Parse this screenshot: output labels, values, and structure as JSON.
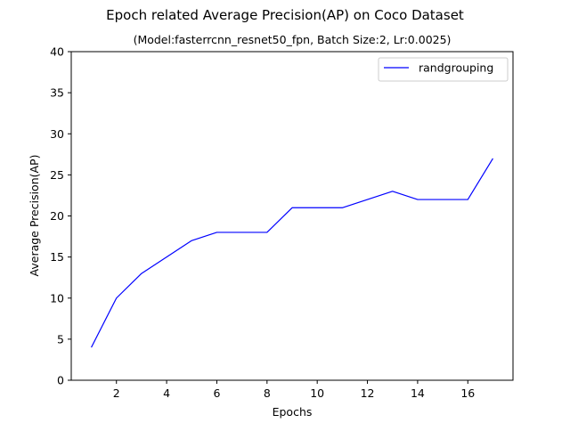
{
  "chart_data": {
    "type": "line",
    "title": "Epoch related Average Precision(AP) on Coco Dataset",
    "subtitle": "(Model:fasterrcnn_resnet50_fpn, Batch Size:2, Lr:0.0025)",
    "xlabel": "Epochs",
    "ylabel": "Average Precision(AP)",
    "xlim": [
      0.2,
      17.8
    ],
    "ylim": [
      0,
      40
    ],
    "xticks": [
      2,
      4,
      6,
      8,
      10,
      12,
      14,
      16
    ],
    "yticks": [
      0,
      5,
      10,
      15,
      20,
      25,
      30,
      35,
      40
    ],
    "grid": false,
    "legend_position": "top-right",
    "series": [
      {
        "name": "randgrouping",
        "color": "#0000ff",
        "x": [
          1,
          2,
          3,
          4,
          5,
          6,
          7,
          8,
          9,
          10,
          11,
          12,
          13,
          14,
          15,
          16,
          17
        ],
        "y": [
          4,
          10,
          13,
          15,
          17,
          18,
          18,
          18,
          21,
          21,
          21,
          22,
          23,
          22,
          22,
          22,
          27
        ]
      }
    ]
  }
}
